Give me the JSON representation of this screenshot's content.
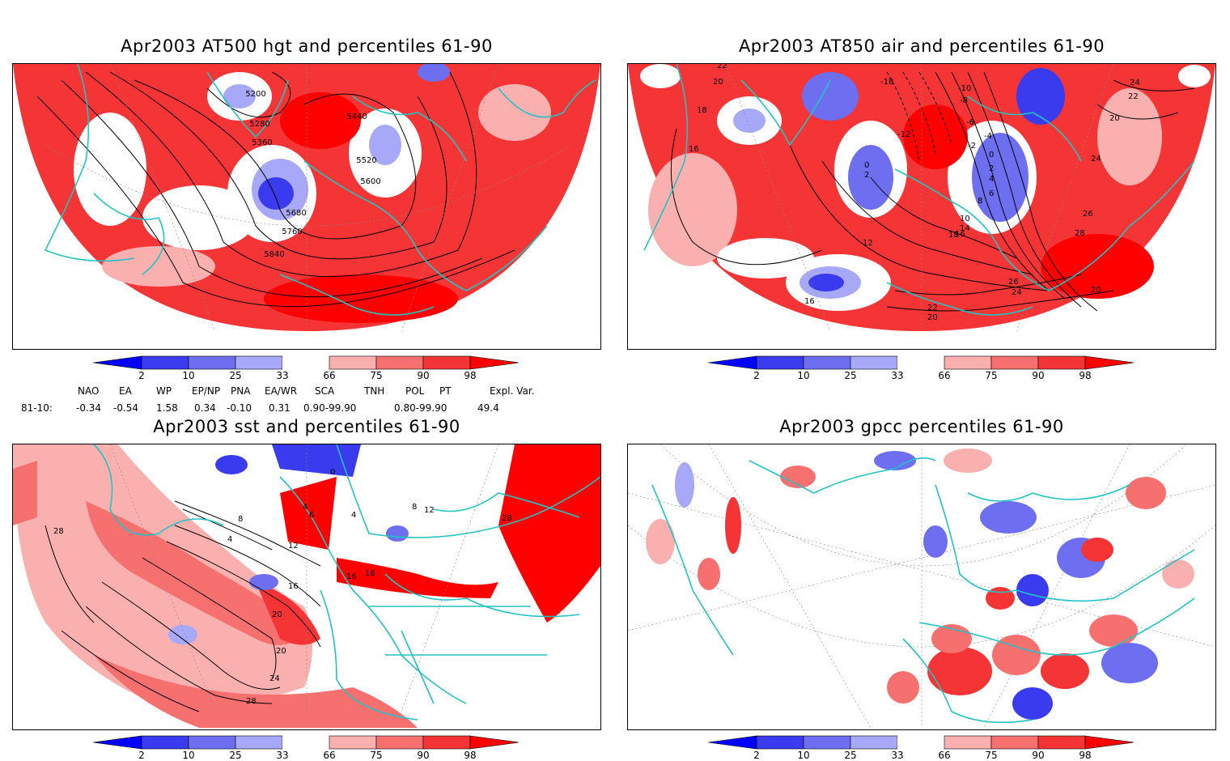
{
  "panels": [
    {
      "title": "Apr2003 AT500 hgt and percentiles 61-90",
      "contour_labels": [
        "5200",
        "5280",
        "5360",
        "5440",
        "5520",
        "5600",
        "5680",
        "5760",
        "5840"
      ]
    },
    {
      "title": "Apr2003 AT850 air and percentiles 61-90",
      "contour_labels": [
        "22",
        "20",
        "18",
        "16",
        "12",
        "16",
        "-18",
        "-10",
        "-8",
        "-12",
        "-6",
        "-4",
        "-2",
        "0",
        "2",
        "4",
        "6",
        "8",
        "10",
        "14",
        "16",
        "18",
        "24",
        "22",
        "20",
        "24",
        "26",
        "28",
        "26",
        "24",
        "22",
        "20",
        "20",
        "0",
        "2"
      ]
    },
    {
      "title": "Apr2003 sst and percentiles 61-90",
      "contour_labels": [
        "28",
        "0",
        "4",
        "6",
        "8",
        "4",
        "12",
        "16",
        "16",
        "16",
        "20",
        "20",
        "24",
        "28",
        "4",
        "8",
        "12",
        "28"
      ]
    },
    {
      "title": "Apr2003 gpcc percentiles 61-90",
      "contour_labels": []
    }
  ],
  "colorbar": {
    "labels": [
      "2",
      "10",
      "25",
      "33",
      "66",
      "75",
      "90",
      "98"
    ],
    "colors": [
      "#0000ff",
      "#3a3aee",
      "#6e6ef0",
      "#a8a8f8",
      "#ffffff",
      "#fbb0b0",
      "#f77070",
      "#f53535",
      "#ff0000"
    ]
  },
  "indices": {
    "row_label": "81-10:",
    "headers": [
      "NAO",
      "EA",
      "WP",
      "EP/NP",
      "PNA",
      "EA/WR",
      "SCA",
      "TNH",
      "POL",
      "PT",
      "Expl. Var."
    ],
    "values": [
      "-0.34",
      "-0.54",
      "1.58",
      "0.34",
      "-0.10",
      "0.31",
      "0.90-99.90",
      "",
      "0.80-99.90",
      "",
      "49.4"
    ]
  },
  "map_colors": {
    "land_outline": "#22c3c3",
    "red": "#ff0000",
    "blue": "#2a2af0",
    "grid": "#888888"
  }
}
